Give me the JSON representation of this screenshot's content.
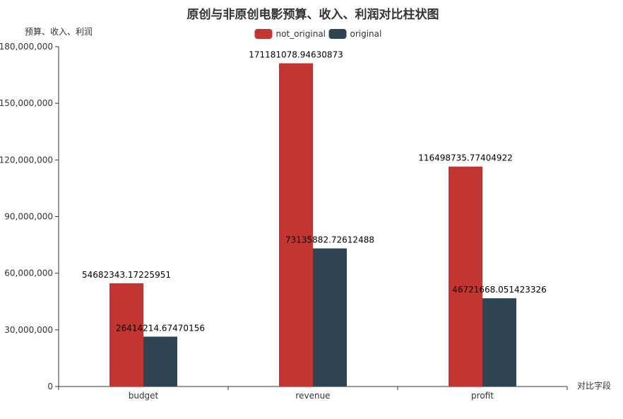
{
  "chart_data": {
    "type": "bar",
    "title": "原创与非原创电影预算、收入、利润对比柱状图",
    "xlabel": "对比字段",
    "ylabel": "预算、收入、利润",
    "categories": [
      "budget",
      "revenue",
      "profit"
    ],
    "ylim": [
      0,
      180000000
    ],
    "y_ticks": [
      "0",
      "30,000,000",
      "60,000,000",
      "90,000,000",
      "120,000,000",
      "150,000,000",
      "180,000,000"
    ],
    "grid": false,
    "legend_position": "top-center",
    "series": [
      {
        "name": "not_original",
        "color": "#c23531",
        "values": [
          54682343.17225951,
          171181078.94630873,
          116498735.77404922
        ],
        "labels": [
          "54682343.17225951",
          "171181078.94630873",
          "116498735.77404922"
        ]
      },
      {
        "name": "original",
        "color": "#2f4554",
        "values": [
          26414214.67470156,
          73135882.72612488,
          46721668.051423326
        ],
        "labels": [
          "26414214.67470156",
          "73135882.72612488",
          "46721668.051423326"
        ]
      }
    ]
  }
}
